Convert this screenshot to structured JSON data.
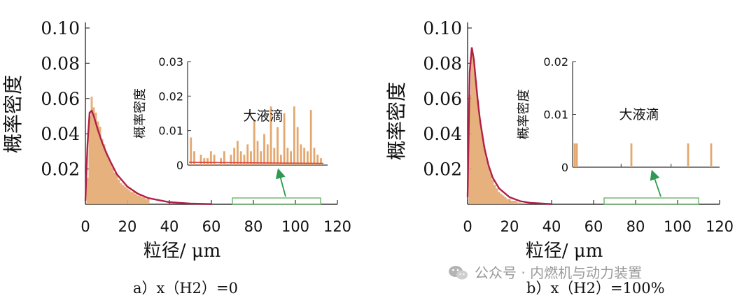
{
  "chart_data": [
    {
      "type": "bar",
      "title": "",
      "xlabel": "粒径/ μm",
      "ylabel": "概率密度",
      "xlim": [
        0,
        120
      ],
      "ylim": [
        0,
        0.1
      ],
      "xticks": [
        "0",
        "20",
        "40",
        "60",
        "80",
        "100",
        "120"
      ],
      "yticks": [
        "0.02",
        "0.04",
        "0.06",
        "0.08",
        "0.10"
      ],
      "series": [
        {
          "name": "histogram",
          "type": "bar",
          "bin_width": 1,
          "x": [
            1,
            2,
            3,
            4,
            5,
            6,
            7,
            8,
            9,
            10,
            11,
            12,
            13,
            14,
            15,
            16,
            17,
            18,
            19,
            20,
            21,
            22,
            23,
            24,
            25,
            26,
            27,
            28,
            29,
            30
          ],
          "values": [
            0.015,
            0.05,
            0.061,
            0.055,
            0.052,
            0.047,
            0.044,
            0.037,
            0.034,
            0.03,
            0.027,
            0.024,
            0.021,
            0.018,
            0.017,
            0.014,
            0.012,
            0.011,
            0.01,
            0.009,
            0.008,
            0.007,
            0.007,
            0.006,
            0.005,
            0.005,
            0.004,
            0.004,
            0.003,
            0.003
          ]
        },
        {
          "name": "fit",
          "type": "line",
          "x": [
            0,
            1,
            2,
            3,
            4,
            6,
            8,
            10,
            12,
            15,
            20,
            25,
            30,
            40,
            50,
            60
          ],
          "values": [
            0.002,
            0.034,
            0.052,
            0.053,
            0.05,
            0.042,
            0.035,
            0.029,
            0.024,
            0.017,
            0.01,
            0.006,
            0.0035,
            0.0012,
            0.0004,
            0.0001
          ]
        }
      ],
      "caption": "a）x（H2）=0",
      "highlight_range": [
        70,
        112
      ],
      "inset": {
        "ylabel": "概率密度",
        "label": "大液滴",
        "ylim": [
          0,
          0.03
        ],
        "yticks": [
          "0",
          "0.01",
          "0.02",
          "0.03"
        ],
        "x": [
          71,
          72,
          74,
          75,
          76,
          77,
          78,
          80,
          81,
          83,
          84,
          85,
          86,
          87,
          88,
          89,
          90,
          91,
          92,
          93,
          94,
          95,
          96,
          97,
          98,
          99,
          100,
          101,
          102,
          103,
          104,
          105,
          106,
          107,
          108,
          109,
          110
        ],
        "values": [
          0.008,
          0.004,
          0.003,
          0.002,
          0.002,
          0.004,
          0.003,
          0.002,
          0.004,
          0.003,
          0.005,
          0.007,
          0.004,
          0.003,
          0.006,
          0.004,
          0.013,
          0.007,
          0.004,
          0.009,
          0.006,
          0.017,
          0.005,
          0.011,
          0.003,
          0.015,
          0.005,
          0.004,
          0.017,
          0.011,
          0.006,
          0.005,
          0.004,
          0.016,
          0.005,
          0.003,
          0.002
        ]
      }
    },
    {
      "type": "bar",
      "title": "",
      "xlabel": "粒径/ μm",
      "ylabel": "概率密度",
      "xlim": [
        0,
        120
      ],
      "ylim": [
        0,
        0.1
      ],
      "xticks": [
        "0",
        "20",
        "40",
        "60",
        "80",
        "100",
        "120"
      ],
      "yticks": [
        "0.02",
        "0.04",
        "0.06",
        "0.08",
        "0.10"
      ],
      "series": [
        {
          "name": "histogram",
          "type": "bar",
          "bin_width": 1,
          "x": [
            1,
            2,
            3,
            4,
            5,
            6,
            7,
            8,
            9,
            10,
            11,
            12,
            13,
            14,
            15,
            16,
            17,
            18,
            19,
            20,
            21,
            22,
            23,
            24,
            25
          ],
          "values": [
            0.062,
            0.087,
            0.082,
            0.07,
            0.059,
            0.048,
            0.04,
            0.033,
            0.027,
            0.022,
            0.018,
            0.014,
            0.011,
            0.009,
            0.007,
            0.006,
            0.005,
            0.004,
            0.003,
            0.003,
            0.002,
            0.002,
            0.002,
            0.001,
            0.001
          ]
        },
        {
          "name": "fit",
          "type": "line",
          "x": [
            0,
            1,
            2,
            3,
            4,
            5,
            6,
            8,
            10,
            12,
            15,
            20,
            25,
            30,
            40
          ],
          "values": [
            0.004,
            0.075,
            0.089,
            0.082,
            0.069,
            0.057,
            0.047,
            0.032,
            0.022,
            0.015,
            0.009,
            0.004,
            0.0018,
            0.0008,
            0.0001
          ]
        }
      ],
      "caption": "b）x（H2）=100%",
      "highlight_range": [
        65,
        110
      ],
      "inset": {
        "ylabel": "概率密度",
        "label": "大液滴",
        "ylim": [
          0,
          0.02
        ],
        "yticks": [
          "0",
          "0.01",
          "0.02"
        ],
        "x": [
          66,
          67,
          93,
          120,
          131
        ],
        "values": [
          0.0045,
          0.0045,
          0.0045,
          0.0045,
          0.0045
        ]
      }
    }
  ],
  "captions": {
    "a": "a）x（H2）=0",
    "b": "b）x（H2）=100%"
  },
  "watermark": "公众号 · 内燃机与动力装置",
  "colors": {
    "bar": "#e3a86f",
    "fit": "#b02048",
    "inset_line": "#e0403c",
    "highlight": "#74b874",
    "arrow": "#2e9a50"
  }
}
